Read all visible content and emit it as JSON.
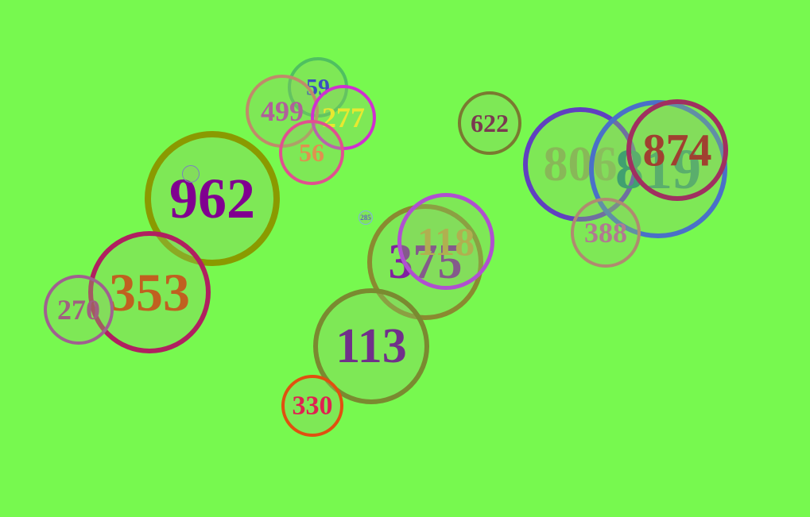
{
  "circles": [
    {
      "label": "59"
    },
    {
      "label": "499"
    },
    {
      "label": "277"
    },
    {
      "label": "56"
    },
    {
      "label": "622"
    },
    {
      "label": "806"
    },
    {
      "label": "819"
    },
    {
      "label": "874"
    },
    {
      "label": "388"
    },
    {
      "label": "962"
    },
    {
      "label": null
    },
    {
      "label": "285"
    },
    {
      "label": "353"
    },
    {
      "label": "270"
    },
    {
      "label": "375"
    },
    {
      "label": "118"
    },
    {
      "label": "113"
    },
    {
      "label": "330"
    }
  ]
}
